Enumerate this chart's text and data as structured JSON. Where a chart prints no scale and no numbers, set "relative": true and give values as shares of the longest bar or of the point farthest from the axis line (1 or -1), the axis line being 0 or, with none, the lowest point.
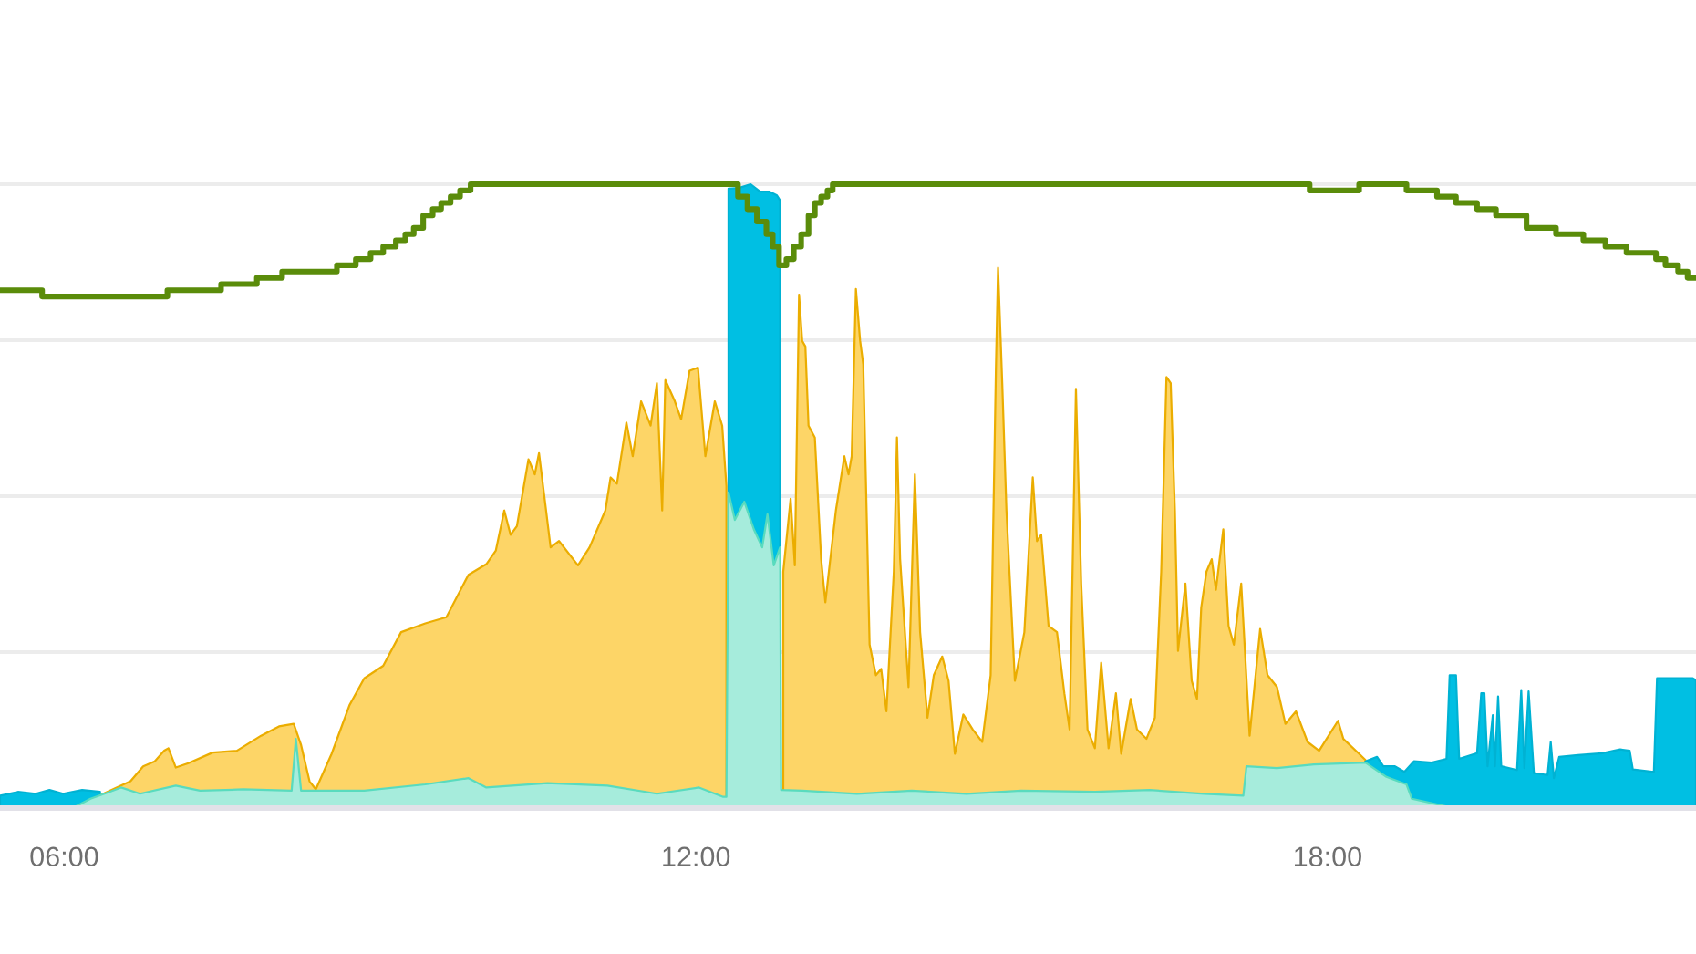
{
  "chart_data": {
    "type": "area",
    "relative": true,
    "xlim": [
      5.39,
      21.5
    ],
    "xticks": [
      {
        "value": 6,
        "label": "06:00"
      },
      {
        "value": 12,
        "label": "12:00"
      },
      {
        "value": 18,
        "label": "18:00"
      }
    ],
    "grid": "y",
    "tick_labels": "x",
    "series": [
      {
        "color": "#fdd567",
        "x": [
          6.08,
          6.46,
          6.63,
          6.75,
          6.86,
          6.95,
          6.99,
          7.06,
          7.18,
          7.41,
          7.64,
          7.87,
          8.04,
          8.18,
          8.25,
          8.33,
          8.39,
          8.54,
          8.71,
          8.85,
          9.03,
          9.2,
          9.43,
          9.63,
          9.84,
          10.01,
          10.1,
          10.18,
          10.24,
          10.3,
          10.41,
          10.47,
          10.51,
          10.62,
          10.7,
          10.88,
          10.99,
          11.14,
          11.19,
          11.25,
          11.34,
          11.4,
          11.48,
          11.57,
          11.63,
          11.68,
          11.71,
          11.8,
          11.86,
          11.94,
          12.02,
          12.09,
          12.18,
          12.25,
          12.29,
          12.31,
          12.37,
          12.46,
          12.55,
          12.63,
          12.68,
          12.74,
          12.8,
          12.83,
          12.9,
          12.94,
          12.98,
          13.01,
          13.04,
          13.07,
          13.13,
          13.19,
          13.23,
          13.27,
          13.33,
          13.41,
          13.45,
          13.48,
          13.52,
          13.56,
          13.59,
          13.65,
          13.71,
          13.76,
          13.81,
          13.88,
          13.91,
          13.94,
          14.02,
          14.08,
          14.13,
          14.2,
          14.26,
          14.34,
          14.4,
          14.46,
          14.54,
          14.63,
          14.72,
          14.8,
          14.85,
          14.87,
          14.91,
          14.95,
          15.03,
          15.12,
          15.2,
          15.24,
          15.28,
          15.35,
          15.43,
          15.5,
          15.55,
          15.61,
          15.66,
          15.72,
          15.79,
          15.85,
          15.92,
          15.99,
          16.04,
          16.13,
          16.19,
          16.28,
          16.36,
          16.42,
          16.47,
          16.51,
          16.55,
          16.58,
          16.65,
          16.71,
          16.76,
          16.8,
          16.85,
          16.9,
          16.94,
          17.01,
          17.06,
          17.11,
          17.18,
          17.26,
          17.36,
          17.43,
          17.52,
          17.6,
          17.7,
          17.81,
          17.92,
          18.01,
          18.1,
          18.15,
          18.3,
          18.36
        ],
        "values": [
          0,
          0.03,
          0.043,
          0.067,
          0.075,
          0.092,
          0.096,
          0.065,
          0.072,
          0.089,
          0.092,
          0.116,
          0.131,
          0.135,
          0.101,
          0.043,
          0.03,
          0.087,
          0.165,
          0.208,
          0.228,
          0.282,
          0.296,
          0.306,
          0.374,
          0.391,
          0.413,
          0.477,
          0.438,
          0.452,
          0.559,
          0.535,
          0.569,
          0.418,
          0.428,
          0.389,
          0.418,
          0.477,
          0.53,
          0.52,
          0.618,
          0.564,
          0.652,
          0.613,
          0.681,
          0.477,
          0.686,
          0.652,
          0.623,
          0.701,
          0.706,
          0.564,
          0.652,
          0.613,
          0.516,
          null,
          null,
          null,
          null,
          null,
          null,
          null,
          null,
          0.379,
          0.496,
          0.389,
          0.823,
          0.749,
          0.74,
          0.613,
          0.594,
          0.399,
          0.33,
          0.389,
          0.477,
          0.564,
          0.535,
          0.564,
          0.832,
          0.749,
          0.711,
          0.262,
          0.213,
          0.223,
          0.155,
          0.379,
          0.594,
          0.399,
          0.194,
          0.535,
          0.282,
          0.145,
          0.213,
          0.243,
          0.204,
          0.087,
          0.15,
          0.126,
          0.106,
          0.213,
          0.706,
          0.866,
          0.681,
          0.477,
          0.204,
          0.282,
          0.53,
          0.428,
          0.438,
          0.292,
          0.282,
          0.184,
          0.126,
          0.672,
          0.36,
          0.126,
          0.096,
          0.233,
          0.096,
          0.184,
          0.087,
          0.175,
          0.126,
          0.111,
          0.145,
          0.379,
          0.691,
          0.681,
          0.477,
          0.252,
          0.36,
          0.204,
          0.175,
          0.321,
          0.379,
          0.399,
          0.35,
          0.447,
          0.292,
          0.262,
          0.36,
          0.116,
          0.287,
          0.213,
          0.194,
          0.135,
          0.155,
          0.106,
          0.092,
          0.116,
          0.14,
          0.111,
          0.087,
          0.077
        ]
      },
      {
        "color": "#00bfe3",
        "x": [
          5.39,
          5.56,
          5.73,
          5.86,
          5.99,
          6.17,
          6.34,
          9.0,
          12.31,
          12.41,
          12.52,
          12.61,
          12.7,
          12.77,
          12.8,
          15.5,
          18.36,
          18.47,
          18.53,
          18.64,
          18.73,
          18.82,
          18.99,
          19.13,
          19.16,
          19.22,
          19.25,
          19.42,
          19.46,
          19.49,
          19.52,
          19.57,
          19.59,
          19.62,
          19.65,
          19.8,
          19.84,
          19.87,
          19.91,
          19.96,
          20.09,
          20.12,
          20.15,
          20.2,
          20.38,
          20.61,
          20.78,
          20.87,
          20.9,
          21.1,
          21.13,
          21.47,
          21.5
        ],
        "values": [
          0.02,
          0.026,
          0.023,
          0.029,
          0.023,
          0.029,
          0.026,
          null,
          0.993,
          0.994,
          1.0,
          0.988,
          0.988,
          0.982,
          0.974,
          null,
          0.075,
          0.082,
          0.067,
          0.067,
          0.058,
          0.075,
          0.073,
          0.079,
          0.213,
          0.213,
          0.079,
          0.088,
          0.184,
          0.184,
          0.067,
          0.149,
          0.067,
          0.179,
          0.067,
          0.061,
          0.189,
          0.064,
          0.187,
          0.056,
          0.053,
          0.106,
          0.048,
          0.082,
          0.085,
          0.088,
          0.094,
          0.092,
          0.062,
          0.058,
          0.208,
          0.208,
          0.205
        ]
      },
      {
        "color": "#a6ecdc",
        "x": [
          6.08,
          6.25,
          6.43,
          6.54,
          6.72,
          7.06,
          7.29,
          7.7,
          8.16,
          8.2,
          8.25,
          8.85,
          9.43,
          9.84,
          10.01,
          10.59,
          11.16,
          11.63,
          12.03,
          12.26,
          12.29,
          12.31,
          12.37,
          12.46,
          12.55,
          12.63,
          12.68,
          12.74,
          12.8,
          12.81,
          13.01,
          13.53,
          14.05,
          14.57,
          15.09,
          15.79,
          16.31,
          16.83,
          17.2,
          17.23,
          17.52,
          17.87,
          18.36,
          18.56,
          18.75,
          18.8,
          19.2
        ],
        "values": [
          0,
          0.015,
          0.026,
          0.033,
          0.023,
          0.036,
          0.028,
          0.03,
          0.028,
          0.111,
          0.028,
          0.028,
          0.038,
          0.048,
          0.033,
          0.04,
          0.036,
          0.023,
          0.033,
          0.018,
          0.018,
          0.506,
          0.462,
          0.491,
          0.447,
          0.418,
          0.471,
          0.389,
          0.418,
          0.029,
          0.028,
          0.023,
          0.028,
          0.023,
          0.028,
          0.026,
          0.029,
          0.023,
          0.02,
          0.067,
          0.064,
          0.07,
          0.073,
          0.05,
          0.038,
          0.015,
          0
        ]
      },
      {
        "type": "step",
        "color": "#5a8c0a",
        "x": [
          5.39,
          5.79,
          6.98,
          7.49,
          7.83,
          8.07,
          8.59,
          8.77,
          8.91,
          9.03,
          9.15,
          9.24,
          9.32,
          9.41,
          9.5,
          9.58,
          9.67,
          9.76,
          9.86,
          12.32,
          12.4,
          12.49,
          12.58,
          12.67,
          12.73,
          12.79,
          12.86,
          12.93,
          13.0,
          13.07,
          13.13,
          13.19,
          13.25,
          13.3,
          17.83,
          18.3,
          18.75,
          19.04,
          19.22,
          19.42,
          19.6,
          19.89,
          20.17,
          20.43,
          20.64,
          20.84,
          21.12,
          21.21,
          21.33,
          21.42,
          21.5
        ],
        "values": [
          0.83,
          0.82,
          0.83,
          0.84,
          0.85,
          0.86,
          0.87,
          0.88,
          0.89,
          0.9,
          0.91,
          0.92,
          0.93,
          0.95,
          0.96,
          0.97,
          0.98,
          0.99,
          1.0,
          1.0,
          0.98,
          0.96,
          0.94,
          0.92,
          0.9,
          0.87,
          0.88,
          0.9,
          0.92,
          0.95,
          0.97,
          0.98,
          0.99,
          1.0,
          0.99,
          1.0,
          0.99,
          0.98,
          0.97,
          0.96,
          0.95,
          0.93,
          0.92,
          0.91,
          0.9,
          0.89,
          0.88,
          0.87,
          0.86,
          0.85,
          0.85
        ]
      }
    ]
  }
}
